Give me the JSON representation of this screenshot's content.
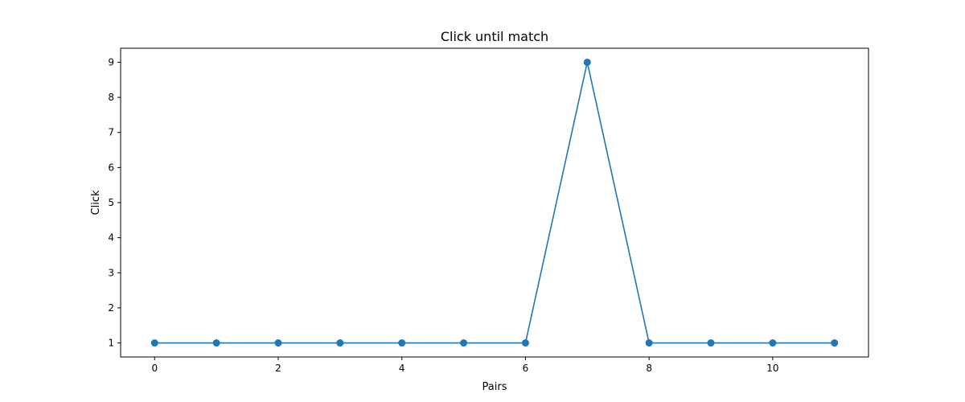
{
  "chart_data": {
    "type": "line",
    "title": "Click until match",
    "xlabel": "Pairs",
    "ylabel": "Click",
    "x": [
      0,
      1,
      2,
      3,
      4,
      5,
      6,
      7,
      8,
      9,
      10,
      11
    ],
    "series": [
      {
        "values": [
          1,
          1,
          1,
          1,
          1,
          1,
          1,
          9,
          1,
          1,
          1,
          1
        ],
        "color": "#1f77b4",
        "marker": "circle"
      }
    ],
    "xlim": [
      -0.55,
      11.55
    ],
    "ylim": [
      0.6,
      9.4
    ],
    "xticks": [
      "0",
      "2",
      "4",
      "6",
      "8",
      "10"
    ],
    "yticks": [
      "1",
      "2",
      "3",
      "4",
      "5",
      "6",
      "7",
      "8",
      "9"
    ],
    "grid": false,
    "legend": "none"
  }
}
